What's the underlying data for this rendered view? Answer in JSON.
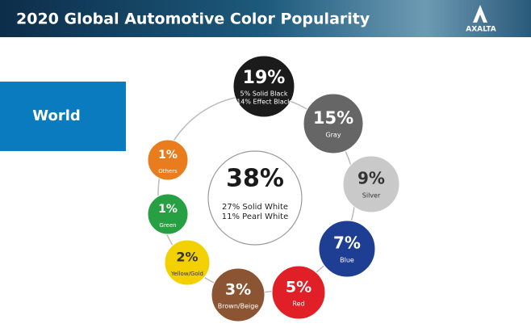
{
  "header": {
    "title": "2020 Global Automotive Color Popularity",
    "logo": "AXALTA"
  },
  "region": "World",
  "center": {
    "percent": "38%",
    "lines": [
      "27% Solid White",
      "11% Pearl White"
    ]
  },
  "nodes": [
    {
      "percent": "19%",
      "lines": [
        "5% Solid Black",
        "14% Effect Black"
      ],
      "color": "#1b1b1b"
    },
    {
      "percent": "15%",
      "lines": [
        "Gray"
      ],
      "color": "#666666"
    },
    {
      "percent": "9%",
      "lines": [
        "Silver"
      ],
      "color": "#c9c9c9"
    },
    {
      "percent": "7%",
      "lines": [
        "Blue"
      ],
      "color": "#1d3e93"
    },
    {
      "percent": "5%",
      "lines": [
        "Red"
      ],
      "color": "#e01f26"
    },
    {
      "percent": "3%",
      "lines": [
        "Brown/Beige"
      ],
      "color": "#8b5432"
    },
    {
      "percent": "2%",
      "lines": [
        "Yellow/Gold"
      ],
      "color": "#f3d000"
    },
    {
      "percent": "1%",
      "lines": [
        "Green"
      ],
      "color": "#27a043"
    },
    {
      "percent": "1%",
      "lines": [
        "Others"
      ],
      "color": "#e97d1d"
    }
  ]
}
